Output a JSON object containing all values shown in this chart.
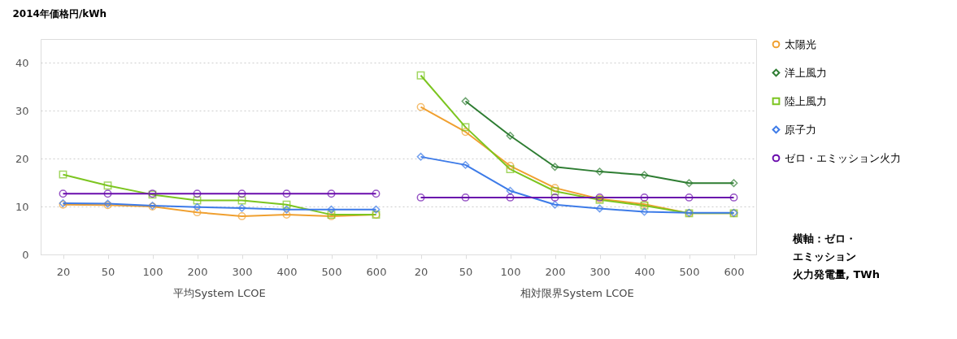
{
  "chart_data": {
    "type": "line",
    "ylabel": "2014年価格円/kWh",
    "categories": [
      "20",
      "50",
      "100",
      "200",
      "300",
      "400",
      "500",
      "600",
      "20",
      "50",
      "100",
      "200",
      "300",
      "400",
      "500",
      "600"
    ],
    "ylim": [
      0,
      45
    ],
    "yticks": [
      0,
      10,
      20,
      30,
      40
    ],
    "grid": "y",
    "legend": "right",
    "line_style": "solid",
    "annotations": [
      "平均System LCOE",
      "相対限界System LCOE",
      "横軸：ゼロ・エミッション火力発電量, TWh"
    ],
    "series": [
      {
        "name": "太陽光",
        "color": "#f0a030",
        "marker": "circle",
        "values": [
          10.4,
          10.3,
          10.0,
          8.8,
          8.0,
          8.3,
          8.0,
          8.3,
          30.8,
          25.6,
          18.5,
          13.9,
          11.6,
          10.5,
          8.6,
          8.6
        ]
      },
      {
        "name": "洋上風力",
        "color": "#2e7d32",
        "marker": "diamond",
        "values": [
          null,
          null,
          null,
          null,
          null,
          null,
          null,
          null,
          null,
          32.0,
          24.8,
          18.3,
          17.3,
          16.6,
          14.9,
          14.9
        ]
      },
      {
        "name": "陸上風力",
        "color": "#7cc520",
        "marker": "square",
        "values": [
          16.7,
          14.4,
          12.5,
          11.3,
          11.3,
          10.4,
          8.3,
          8.3,
          37.4,
          26.6,
          17.8,
          13.2,
          11.4,
          10.2,
          8.6,
          8.6
        ]
      },
      {
        "name": "原子力",
        "color": "#3d7be8",
        "marker": "diamond",
        "values": [
          10.7,
          10.6,
          10.2,
          9.9,
          9.7,
          9.4,
          9.4,
          9.4,
          20.4,
          18.7,
          13.3,
          10.4,
          9.6,
          8.9,
          8.7,
          8.7
        ]
      },
      {
        "name": "ゼロ・エミッション火力",
        "color": "#6a0dad",
        "marker": "circle",
        "values": [
          12.7,
          12.7,
          12.7,
          12.7,
          12.7,
          12.7,
          12.7,
          12.7,
          11.9,
          11.9,
          11.9,
          11.9,
          11.9,
          11.9,
          11.9,
          11.9
        ]
      }
    ]
  }
}
